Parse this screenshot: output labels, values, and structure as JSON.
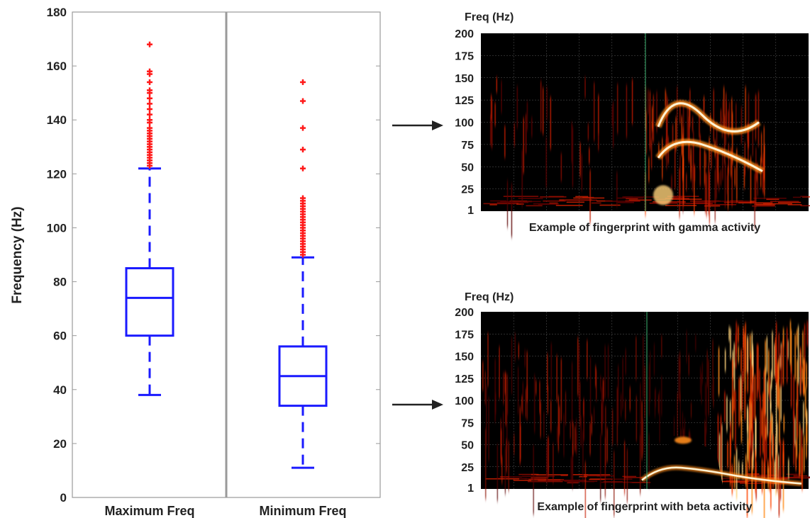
{
  "chart_data": [
    {
      "type": "boxplot",
      "ylabel": "Frequency (Hz)",
      "ylim": [
        0,
        180
      ],
      "yticks": [
        0,
        20,
        40,
        60,
        80,
        100,
        120,
        140,
        160,
        180
      ],
      "grid": false,
      "categories": [
        "Maximum Freq",
        "Minimum Freq"
      ],
      "box_color": "#1a1aff",
      "outlier_color": "#ff1a1a",
      "series": [
        {
          "whisker_low": 38,
          "q1": 60,
          "median": 74,
          "q3": 85,
          "whisker_high": 122,
          "outliers": [
            168,
            158,
            157,
            154,
            151,
            150,
            148,
            146,
            144,
            142,
            140,
            139,
            137,
            136,
            135,
            134,
            133,
            132,
            131,
            130,
            129,
            128,
            127,
            126,
            125,
            124,
            123
          ]
        },
        {
          "whisker_low": 11,
          "q1": 34,
          "median": 45,
          "q3": 56,
          "whisker_high": 89,
          "outliers": [
            154,
            147,
            137,
            129,
            122,
            111,
            110,
            109,
            108,
            107,
            106,
            105,
            104,
            103,
            102,
            101,
            100,
            99,
            98,
            97,
            96,
            95,
            94,
            93,
            92,
            91,
            90
          ]
        }
      ]
    },
    {
      "type": "heatmap",
      "ylabel": "Freq (Hz)",
      "yticks": [
        200,
        175,
        150,
        125,
        100,
        75,
        50,
        25,
        1
      ],
      "caption": "Example of fingerprint with gamma activity",
      "activity": "gamma",
      "colormap": "hot"
    },
    {
      "type": "heatmap",
      "ylabel": "Freq (Hz)",
      "yticks": [
        200,
        175,
        150,
        125,
        100,
        75,
        50,
        25,
        1
      ],
      "caption": "Example of fingerprint with beta activity",
      "activity": "beta",
      "colormap": "hot"
    }
  ]
}
